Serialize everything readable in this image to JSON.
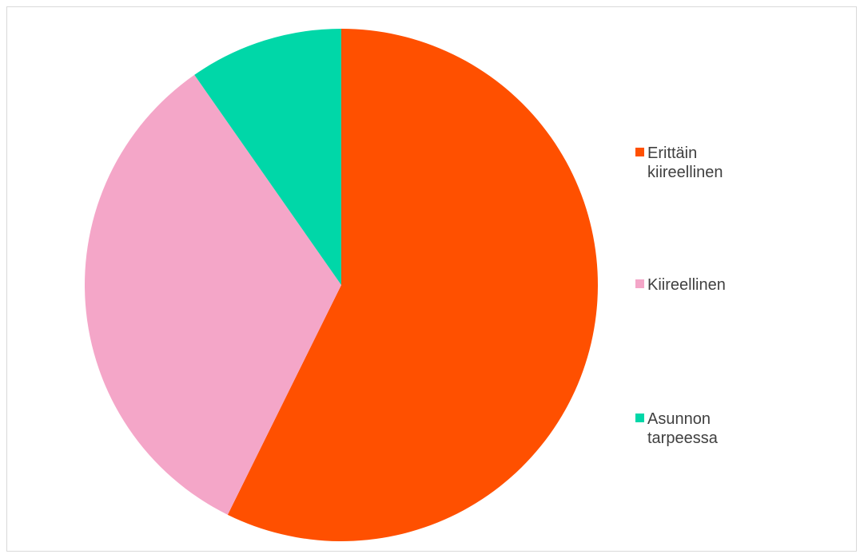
{
  "chart_data": {
    "type": "pie",
    "title": "",
    "categories": [
      "Erittäin kiireellinen",
      "Kiireellinen",
      "Asunnon tarpeessa"
    ],
    "values": [
      57.3,
      33.0,
      9.7
    ],
    "colors": [
      "#ff5000",
      "#f4a6c8",
      "#00d7a8"
    ],
    "start_angle_deg": 0,
    "direction": "clockwise",
    "legend_position": "right"
  },
  "legend": {
    "items": [
      {
        "label": "Erittäin kiireellinen",
        "color": "#ff5000"
      },
      {
        "label": "Kiireellinen",
        "color": "#f4a6c8"
      },
      {
        "label": "Asunnon tarpeessa",
        "color": "#00d7a8"
      }
    ]
  }
}
